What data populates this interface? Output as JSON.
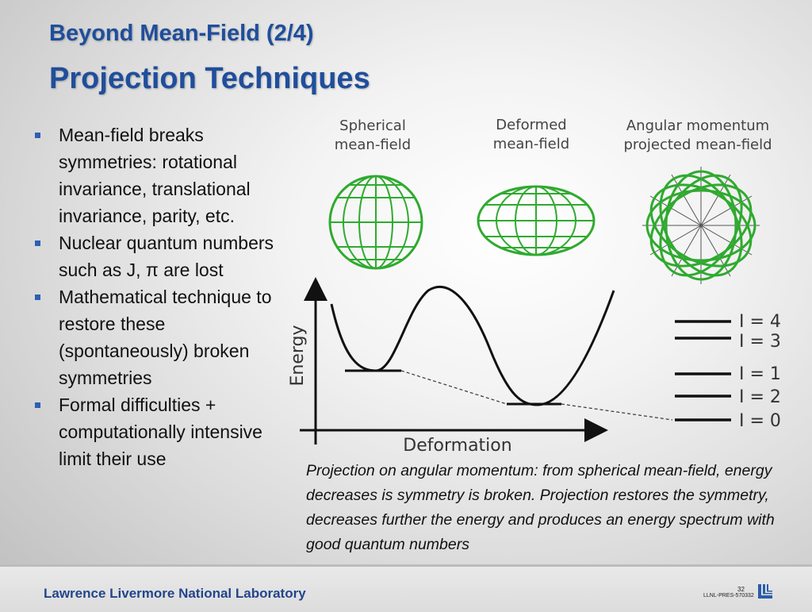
{
  "header": {
    "title_line1": "Beyond Mean-Field (2/4)",
    "title_line2": "Projection Techniques"
  },
  "bullets": [
    "Mean-field breaks symmetries: rotational invariance, translational invariance, parity, etc.",
    "Nuclear quantum numbers such as J, π are lost",
    "Mathematical technique to restore these (spontaneously) broken symmetries",
    "Formal difficulties + computationally intensive limit their use"
  ],
  "figure": {
    "labels": {
      "spherical_line1": "Spherical",
      "spherical_line2": "mean-field",
      "deformed_line1": "Deformed",
      "deformed_line2": "mean-field",
      "projected_line1": "Angular momentum",
      "projected_line2": "projected mean-field"
    },
    "y_axis_label": "Energy",
    "x_axis_label": "Deformation",
    "levels": [
      "I = 4",
      "I = 3",
      "I = 1",
      "I = 2",
      "I = 0"
    ],
    "icons": [
      "spherical-mean-field-globe",
      "deformed-mean-field-ellipsoid",
      "projected-rosette"
    ],
    "colors": {
      "globe": "#2faa2f",
      "text": "#444444"
    }
  },
  "caption": "Projection on angular momentum: from spherical mean-field, energy decreases is symmetry is broken. Projection restores the symmetry, decreases further the energy and produces an energy spectrum with good quantum numbers",
  "footer": {
    "lab": "Lawrence Livermore National Laboratory",
    "page_number": "32",
    "release_number": "LLNL-PRES-570332"
  }
}
